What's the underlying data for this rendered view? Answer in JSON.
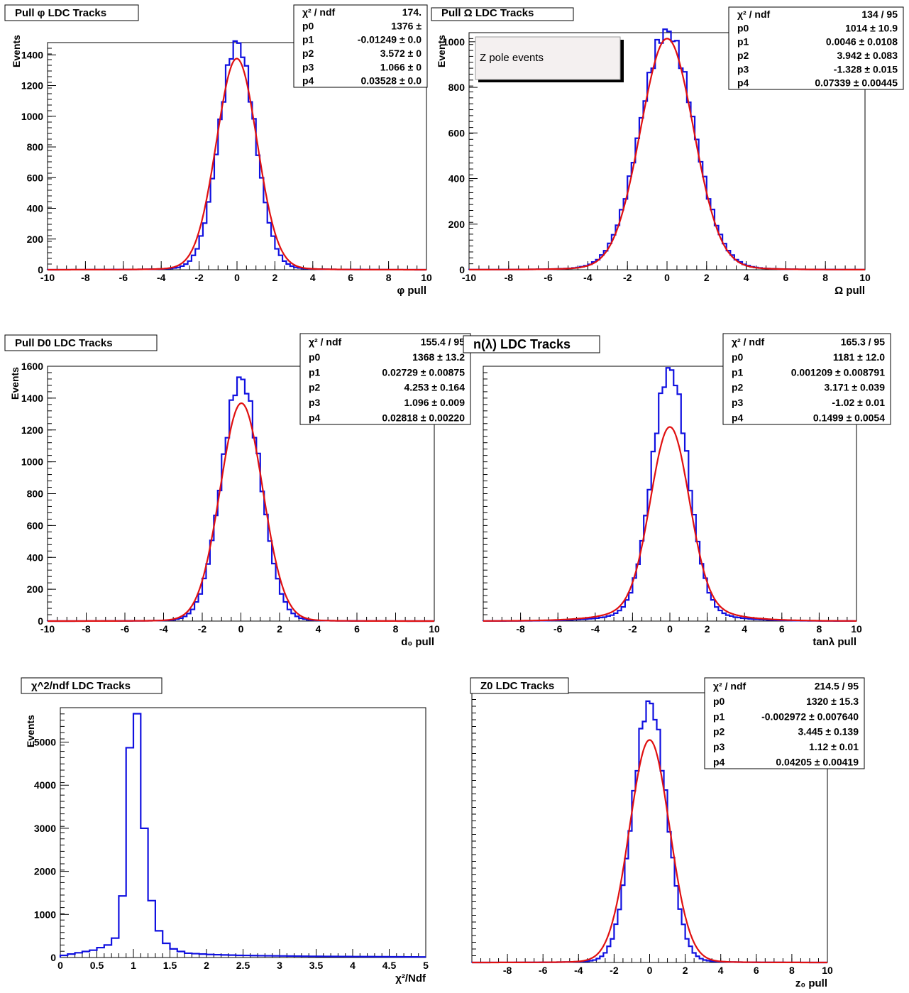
{
  "colors": {
    "histogram": "#1010e0",
    "fit": "#e01010",
    "frame": "#000000",
    "note_bg": "#f4f0f0"
  },
  "pole_note": "Z pole events",
  "chart_data": [
    {
      "type": "line",
      "title": "Pull φ LDC Tracks",
      "xlabel": "φ pull",
      "ylabel": "Events",
      "xlim": [
        -10,
        10
      ],
      "ylim": [
        0,
        1480
      ],
      "xticks": [
        -10,
        -8,
        -6,
        -4,
        -2,
        0,
        2,
        4,
        6,
        8,
        10
      ],
      "yticks": [
        0,
        200,
        400,
        600,
        800,
        1000,
        1200,
        1400
      ],
      "series": [
        {
          "kind": "histogram",
          "bins": 100,
          "shape": "core",
          "peak": 1480,
          "core_width": 0.95,
          "tail_amp": 30,
          "tail_width": 3.2
        },
        {
          "kind": "fit",
          "A": 1376,
          "mu": -0.01249,
          "sigma": 1.066,
          "tail_amp": 28,
          "tail_width": 3.2
        }
      ],
      "stats": [
        {
          "label": "χ² / ndf",
          "value": "174."
        },
        {
          "label": "p0",
          "value": "1376 ±"
        },
        {
          "label": "p1",
          "value": "-0.01249 ± 0.0"
        },
        {
          "label": "p2",
          "value": "3.572 ± 0"
        },
        {
          "label": "p3",
          "value": "1.066 ± 0"
        },
        {
          "label": "p4",
          "value": "0.03528 ± 0.0"
        }
      ]
    },
    {
      "type": "line",
      "title": "Pull Ω LDC Tracks",
      "xlabel": "Ω pull",
      "ylabel": "Events",
      "xlim": [
        -10,
        10
      ],
      "ylim": [
        0,
        1040
      ],
      "xticks": [
        -10,
        -8,
        -6,
        -4,
        -2,
        0,
        2,
        4,
        6,
        8,
        10
      ],
      "yticks": [
        0,
        200,
        400,
        600,
        800,
        1000
      ],
      "series": [
        {
          "kind": "histogram",
          "bins": 100,
          "shape": "broad",
          "peak": 1045,
          "core_width": 1.35,
          "tail_amp": 40,
          "tail_width": 3.5
        },
        {
          "kind": "fit",
          "A": 1014,
          "mu": 0.0046,
          "sigma": 1.328,
          "tail_amp": 38,
          "tail_width": 3.5
        }
      ],
      "stats": [
        {
          "label": "χ² / ndf",
          "value": "134 / 95"
        },
        {
          "label": "p0",
          "value": "1014 ± 10.9"
        },
        {
          "label": "p1",
          "value": "0.0046 ± 0.0108"
        },
        {
          "label": "p2",
          "value": "3.942 ± 0.083"
        },
        {
          "label": "p3",
          "value": "-1.328 ± 0.015"
        },
        {
          "label": "p4",
          "value": "0.07339 ± 0.00445"
        }
      ]
    },
    {
      "type": "line",
      "title": "Pull D0 LDC Tracks",
      "xlabel": "d₀ pull",
      "ylabel": "Events",
      "xlim": [
        -10,
        10
      ],
      "ylim": [
        0,
        1600
      ],
      "xticks": [
        -10,
        -8,
        -6,
        -4,
        -2,
        0,
        2,
        4,
        6,
        8,
        10
      ],
      "yticks": [
        0,
        200,
        400,
        600,
        800,
        1000,
        1200,
        1400,
        1600
      ],
      "series": [
        {
          "kind": "histogram",
          "bins": 100,
          "shape": "core",
          "peak": 1520,
          "core_width": 1.0,
          "tail_amp": 25,
          "tail_width": 3.0
        },
        {
          "kind": "fit",
          "A": 1368,
          "mu": 0.02729,
          "sigma": 1.096,
          "tail_amp": 24,
          "tail_width": 3.0
        }
      ],
      "stats": [
        {
          "label": "χ² / ndf",
          "value": "155.4 / 95"
        },
        {
          "label": "p0",
          "value": "1368 ± 13.2"
        },
        {
          "label": "p1",
          "value": "0.02729 ± 0.00875"
        },
        {
          "label": "p2",
          "value": "4.253 ± 0.164"
        },
        {
          "label": "p3",
          "value": "1.096 ± 0.009"
        },
        {
          "label": "p4",
          "value": "0.02818 ± 0.00220"
        }
      ]
    },
    {
      "type": "line",
      "title": "n(λ) LDC Tracks",
      "xlabel": "tanλ pull",
      "ylabel": "",
      "xlim": [
        -10,
        10
      ],
      "ylim": [
        0,
        1550
      ],
      "xticks": [
        -8,
        -6,
        -4,
        -2,
        0,
        2,
        4,
        6,
        8,
        10
      ],
      "yticks": [],
      "series": [
        {
          "kind": "histogram",
          "bins": 100,
          "shape": "core",
          "peak": 1530,
          "core_width": 0.95,
          "tail_amp": 120,
          "tail_width": 3.0
        },
        {
          "kind": "fit",
          "A": 1181,
          "mu": 0.001209,
          "sigma": 1.02,
          "tail_amp": 165,
          "tail_width": 3.171
        }
      ],
      "stats": [
        {
          "label": "χ² / ndf",
          "value": "165.3 / 95"
        },
        {
          "label": "p0",
          "value": "1181 ± 12.0"
        },
        {
          "label": "p1",
          "value": "0.001209 ± 0.008791"
        },
        {
          "label": "p2",
          "value": "3.171 ± 0.039"
        },
        {
          "label": "p3",
          "value": "-1.02 ± 0.01"
        },
        {
          "label": "p4",
          "value": "0.1499 ± 0.0054"
        }
      ]
    },
    {
      "type": "bar",
      "title": "χ^2/ndf LDC Tracks",
      "xlabel": "χ²/Ndf",
      "ylabel": "Events",
      "xlim": [
        0,
        5
      ],
      "ylim": [
        0,
        5800
      ],
      "xticks": [
        0,
        0.5,
        1,
        1.5,
        2,
        2.5,
        3,
        3.5,
        4,
        4.5,
        5
      ],
      "xticklabels": [
        "0",
        "0.5",
        "1",
        "1.5",
        "2",
        "2.5",
        "3",
        "3.5",
        "4",
        "4.5",
        "5"
      ],
      "yticks": [
        0,
        1000,
        2000,
        3000,
        4000,
        5000
      ],
      "series": [
        {
          "kind": "histogram",
          "bin_width": 0.1,
          "values": [
            50,
            80,
            110,
            140,
            170,
            230,
            290,
            450,
            1430,
            4870,
            5660,
            3000,
            1320,
            620,
            330,
            200,
            140,
            100,
            90,
            80,
            70,
            65,
            60,
            55,
            50,
            48,
            45,
            42,
            40,
            38,
            36,
            34,
            32,
            30,
            28,
            27,
            26,
            25,
            24,
            23,
            22,
            21,
            20,
            19,
            18,
            17,
            16,
            15,
            14,
            13
          ]
        }
      ],
      "stats": []
    },
    {
      "type": "line",
      "title": "Z0 LDC Tracks",
      "xlabel": "z₀ pull",
      "ylabel": "",
      "xlim": [
        -10,
        10
      ],
      "ylim": [
        0,
        1600
      ],
      "xticks": [
        -8,
        -6,
        -4,
        -2,
        0,
        2,
        4,
        6,
        8,
        10
      ],
      "yticks": [],
      "series": [
        {
          "kind": "histogram",
          "bins": 100,
          "shape": "core",
          "peak": 1540,
          "core_width": 0.95,
          "tail_amp": 30,
          "tail_width": 3.0
        },
        {
          "kind": "fit",
          "A": 1320,
          "mu": -0.002972,
          "sigma": 1.12,
          "tail_amp": 30,
          "tail_width": 3.0
        }
      ],
      "stats": [
        {
          "label": "χ² / ndf",
          "value": "214.5 / 95"
        },
        {
          "label": "p0",
          "value": "1320 ± 15.3"
        },
        {
          "label": "p1",
          "value": "-0.002972 ± 0.007640"
        },
        {
          "label": "p2",
          "value": "3.445 ± 0.139"
        },
        {
          "label": "p3",
          "value": "1.12 ± 0.01"
        },
        {
          "label": "p4",
          "value": "0.04205 ± 0.00419"
        }
      ]
    }
  ]
}
